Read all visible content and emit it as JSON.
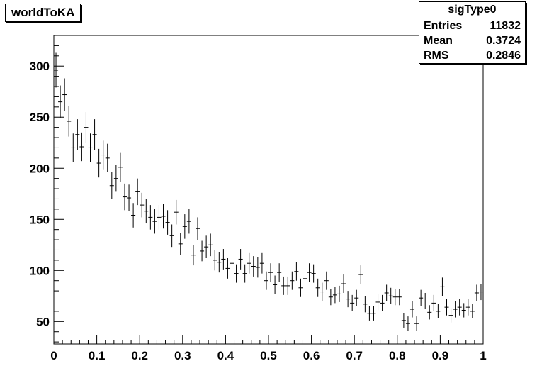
{
  "chart_data": {
    "type": "scatter",
    "title": "worldToKA",
    "xlabel": "",
    "ylabel": "",
    "xlim": [
      0,
      1
    ],
    "ylim": [
      28,
      330
    ],
    "x_ticks": [
      "0",
      "0.1",
      "0.2",
      "0.3",
      "0.4",
      "0.5",
      "0.6",
      "0.7",
      "0.8",
      "0.9",
      "1"
    ],
    "y_ticks": [
      "50",
      "100",
      "150",
      "200",
      "250",
      "300"
    ],
    "stats": {
      "name": "sigType0",
      "rows": [
        {
          "label": "Entries",
          "value": "11832"
        },
        {
          "label": "Mean",
          "value": "0.3724"
        },
        {
          "label": "RMS",
          "value": "0.2846"
        }
      ]
    },
    "bin_width": 0.01,
    "x": [
      0.005,
      0.015,
      0.025,
      0.035,
      0.045,
      0.055,
      0.065,
      0.075,
      0.085,
      0.095,
      0.105,
      0.115,
      0.125,
      0.135,
      0.145,
      0.155,
      0.165,
      0.175,
      0.185,
      0.195,
      0.205,
      0.215,
      0.225,
      0.235,
      0.245,
      0.255,
      0.265,
      0.275,
      0.285,
      0.295,
      0.305,
      0.315,
      0.325,
      0.335,
      0.345,
      0.355,
      0.365,
      0.375,
      0.385,
      0.395,
      0.405,
      0.415,
      0.425,
      0.435,
      0.445,
      0.455,
      0.465,
      0.475,
      0.485,
      0.495,
      0.505,
      0.515,
      0.525,
      0.535,
      0.545,
      0.555,
      0.565,
      0.575,
      0.585,
      0.595,
      0.605,
      0.615,
      0.625,
      0.635,
      0.645,
      0.655,
      0.665,
      0.675,
      0.685,
      0.695,
      0.705,
      0.715,
      0.725,
      0.735,
      0.745,
      0.755,
      0.765,
      0.775,
      0.785,
      0.795,
      0.805,
      0.815,
      0.825,
      0.835,
      0.845,
      0.855,
      0.865,
      0.875,
      0.885,
      0.895,
      0.905,
      0.915,
      0.925,
      0.935,
      0.945,
      0.955,
      0.965,
      0.975,
      0.985,
      0.995
    ],
    "y": [
      296,
      265,
      272,
      246,
      220,
      233,
      221,
      240,
      220,
      233,
      205,
      213,
      210,
      183,
      190,
      201,
      172,
      171,
      154,
      177,
      164,
      158,
      152,
      148,
      152,
      153,
      147,
      134,
      157,
      126,
      143,
      148,
      115,
      141,
      119,
      123,
      125,
      110,
      108,
      111,
      102,
      107,
      97,
      111,
      97,
      107,
      104,
      103,
      107,
      90,
      98,
      86,
      98,
      85,
      85,
      90,
      99,
      83,
      92,
      98,
      97,
      83,
      79,
      90,
      74,
      76,
      77,
      87,
      72,
      68,
      73,
      96,
      67,
      58,
      58,
      69,
      68,
      78,
      75,
      74,
      74,
      51,
      48,
      62,
      48,
      73,
      70,
      59,
      68,
      60,
      84,
      64,
      56,
      62,
      64,
      61,
      64,
      60,
      78,
      79
    ],
    "err": [
      17,
      16,
      16,
      15,
      14,
      15,
      14,
      15,
      14,
      15,
      14,
      14,
      14,
      13,
      13,
      14,
      13,
      13,
      12,
      13,
      12,
      12,
      12,
      12,
      12,
      12,
      12,
      11,
      12,
      11,
      12,
      12,
      10,
      11,
      10,
      11,
      11,
      10,
      10,
      10,
      10,
      10,
      9,
      10,
      9,
      10,
      10,
      10,
      10,
      9,
      9,
      9,
      9,
      9,
      9,
      9,
      9,
      9,
      9,
      9,
      9,
      9,
      9,
      9,
      8,
      8,
      8,
      9,
      8,
      8,
      8,
      9,
      8,
      7,
      7,
      8,
      8,
      8,
      8,
      8,
      8,
      7,
      7,
      8,
      7,
      8,
      8,
      7,
      8,
      7,
      9,
      8,
      7,
      8,
      8,
      7,
      8,
      7,
      8,
      8
    ]
  }
}
